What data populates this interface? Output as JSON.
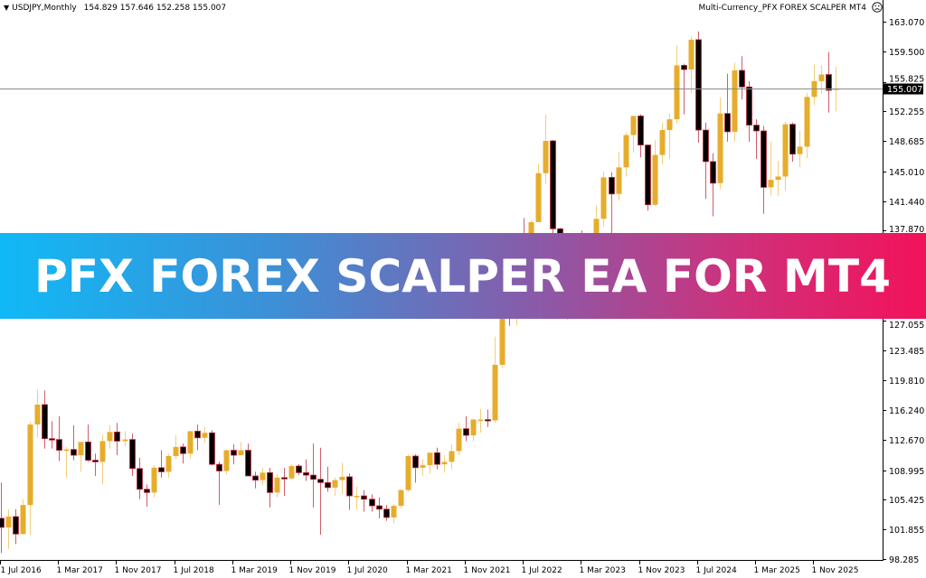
{
  "header": {
    "symbol": "USDJPY,Monthly",
    "ohlc": "154.829 157.646 152.258 155.007",
    "expert_name": "Multi-Currency_PFX FOREX SCALPER MT4",
    "expert_status_icon": "frown-face-icon"
  },
  "banner": {
    "title": "PFX FOREX SCALPER EA FOR MT4",
    "gradient": [
      "#10b9f6",
      "#f2125a"
    ]
  },
  "current_price_label": "155.007",
  "chart_data": {
    "type": "candlestick",
    "symbol": "USDJPY",
    "timeframe": "Monthly",
    "ylim": [
      98.285,
      163.07
    ],
    "grid": false,
    "colors": {
      "bull": "#e6ad2c",
      "bull_wick": "#f0c35a",
      "bear_body": "#000000",
      "bear_outline": "#c0283a",
      "price_line": "#8a8a8a"
    },
    "current_price": 155.007,
    "y_ticks": [
      "163.070",
      "159.500",
      "155.825",
      "152.255",
      "148.685",
      "145.010",
      "141.440",
      "137.870",
      "127.055",
      "123.485",
      "119.810",
      "116.240",
      "112.670",
      "108.995",
      "105.425",
      "101.855",
      "98.285"
    ],
    "x_ticks": [
      "1 Jul 2016",
      "1 Mar 2017",
      "1 Nov 2017",
      "1 Jul 2018",
      "1 Mar 2019",
      "1 Nov 2019",
      "1 Jul 2020",
      "1 Mar 2021",
      "1 Nov 2021",
      "1 Jul 2022",
      "1 Mar 2023",
      "1 Nov 2023",
      "1 Jul 2024",
      "1 Mar 2025",
      "1 Nov 2025"
    ],
    "ohlc_columns": [
      "month",
      "open",
      "high",
      "low",
      "close"
    ],
    "candles": [
      [
        "2016-07",
        103.2,
        107.5,
        99.0,
        102.1
      ],
      [
        "2016-08",
        102.1,
        104.3,
        99.5,
        103.4
      ],
      [
        "2016-09",
        103.4,
        104.3,
        100.1,
        101.3
      ],
      [
        "2016-10",
        101.3,
        105.5,
        101.2,
        104.8
      ],
      [
        "2016-11",
        104.8,
        114.8,
        101.2,
        114.5
      ],
      [
        "2016-12",
        114.5,
        118.7,
        112.9,
        116.9
      ],
      [
        "2017-01",
        116.9,
        118.6,
        111.6,
        112.8
      ],
      [
        "2017-02",
        112.8,
        114.9,
        111.6,
        112.7
      ],
      [
        "2017-03",
        112.7,
        115.5,
        110.1,
        111.4
      ],
      [
        "2017-04",
        111.4,
        111.8,
        108.1,
        111.5
      ],
      [
        "2017-05",
        111.5,
        114.4,
        110.2,
        110.8
      ],
      [
        "2017-06",
        110.8,
        112.4,
        108.8,
        112.4
      ],
      [
        "2017-07",
        112.4,
        114.5,
        110.0,
        110.2
      ],
      [
        "2017-08",
        110.2,
        111.0,
        108.3,
        110.0
      ],
      [
        "2017-09",
        110.0,
        113.3,
        107.3,
        112.5
      ],
      [
        "2017-10",
        112.5,
        114.4,
        111.6,
        113.6
      ],
      [
        "2017-11",
        113.6,
        114.7,
        110.8,
        112.5
      ],
      [
        "2017-12",
        112.5,
        113.7,
        111.9,
        112.7
      ],
      [
        "2018-01",
        112.7,
        113.4,
        108.3,
        109.2
      ],
      [
        "2018-02",
        109.2,
        110.5,
        105.5,
        106.7
      ],
      [
        "2018-03",
        106.7,
        107.3,
        104.6,
        106.3
      ],
      [
        "2018-04",
        106.3,
        109.6,
        105.7,
        109.3
      ],
      [
        "2018-05",
        109.3,
        111.4,
        108.1,
        108.8
      ],
      [
        "2018-06",
        108.8,
        111.0,
        108.1,
        110.7
      ],
      [
        "2018-07",
        110.7,
        113.2,
        110.3,
        111.8
      ],
      [
        "2018-08",
        111.8,
        112.2,
        109.8,
        111.0
      ],
      [
        "2018-09",
        111.0,
        113.7,
        110.4,
        113.7
      ],
      [
        "2018-10",
        113.7,
        114.5,
        111.4,
        112.9
      ],
      [
        "2018-11",
        112.9,
        114.2,
        112.3,
        113.5
      ],
      [
        "2018-12",
        113.5,
        113.8,
        109.6,
        109.7
      ],
      [
        "2019-01",
        109.7,
        110.0,
        104.8,
        108.9
      ],
      [
        "2019-02",
        108.9,
        111.5,
        108.5,
        111.4
      ],
      [
        "2019-03",
        111.4,
        112.1,
        109.7,
        110.8
      ],
      [
        "2019-04",
        110.8,
        112.4,
        110.8,
        111.4
      ],
      [
        "2019-05",
        111.4,
        112.2,
        108.3,
        108.3
      ],
      [
        "2019-06",
        108.3,
        108.8,
        106.8,
        107.8
      ],
      [
        "2019-07",
        107.8,
        109.3,
        107.2,
        108.7
      ],
      [
        "2019-08",
        108.7,
        109.3,
        104.5,
        106.3
      ],
      [
        "2019-09",
        106.3,
        108.5,
        105.7,
        108.1
      ],
      [
        "2019-10",
        108.1,
        109.3,
        105.9,
        108.0
      ],
      [
        "2019-11",
        108.0,
        109.7,
        107.9,
        109.5
      ],
      [
        "2019-12",
        109.5,
        109.7,
        108.4,
        108.7
      ],
      [
        "2020-01",
        108.7,
        110.3,
        107.7,
        108.4
      ],
      [
        "2020-02",
        108.4,
        112.2,
        104.5,
        107.9
      ],
      [
        "2020-03",
        107.9,
        111.7,
        101.2,
        107.5
      ],
      [
        "2020-04",
        107.5,
        109.4,
        106.4,
        106.9
      ],
      [
        "2020-05",
        106.9,
        108.1,
        105.9,
        107.8
      ],
      [
        "2020-06",
        107.8,
        109.9,
        106.1,
        108.2
      ],
      [
        "2020-07",
        108.2,
        108.6,
        104.2,
        105.9
      ],
      [
        "2020-08",
        105.9,
        107.0,
        104.2,
        105.9
      ],
      [
        "2020-09",
        105.9,
        106.6,
        104.0,
        105.5
      ],
      [
        "2020-10",
        105.5,
        106.1,
        104.0,
        104.7
      ],
      [
        "2020-11",
        104.7,
        105.7,
        103.2,
        104.3
      ],
      [
        "2020-12",
        104.3,
        104.8,
        102.9,
        103.3
      ],
      [
        "2021-01",
        103.3,
        104.9,
        102.6,
        104.7
      ],
      [
        "2021-02",
        104.7,
        106.7,
        104.4,
        106.6
      ],
      [
        "2021-03",
        106.6,
        110.9,
        106.4,
        110.7
      ],
      [
        "2021-04",
        110.7,
        110.9,
        107.5,
        109.3
      ],
      [
        "2021-05",
        109.3,
        110.3,
        108.3,
        109.6
      ],
      [
        "2021-06",
        109.6,
        111.1,
        108.6,
        111.1
      ],
      [
        "2021-07",
        111.1,
        111.7,
        109.1,
        109.7
      ],
      [
        "2021-08",
        109.7,
        110.8,
        108.7,
        110.0
      ],
      [
        "2021-09",
        110.0,
        112.1,
        109.1,
        111.3
      ],
      [
        "2021-10",
        111.3,
        114.7,
        110.8,
        114.0
      ],
      [
        "2021-11",
        114.0,
        115.5,
        112.5,
        113.2
      ],
      [
        "2021-12",
        113.2,
        115.2,
        112.5,
        115.1
      ],
      [
        "2022-01",
        115.1,
        116.4,
        113.5,
        115.1
      ],
      [
        "2022-02",
        115.1,
        116.3,
        114.2,
        115.0
      ],
      [
        "2022-03",
        115.0,
        125.1,
        114.7,
        121.7
      ],
      [
        "2022-04",
        121.7,
        131.3,
        121.3,
        129.8
      ],
      [
        "2022-05",
        129.8,
        131.3,
        126.4,
        128.7
      ],
      [
        "2022-06",
        128.7,
        137.0,
        126.4,
        135.7
      ],
      [
        "2022-07",
        135.7,
        139.4,
        132.5,
        133.2
      ],
      [
        "2022-08",
        133.2,
        139.1,
        130.4,
        138.9
      ],
      [
        "2022-09",
        138.9,
        145.9,
        138.9,
        144.8
      ],
      [
        "2022-10",
        144.8,
        151.9,
        143.5,
        148.7
      ],
      [
        "2022-11",
        148.7,
        148.8,
        137.5,
        138.1
      ],
      [
        "2022-12",
        138.1,
        138.2,
        130.6,
        131.1
      ],
      [
        "2023-01",
        131.1,
        134.8,
        127.2,
        130.1
      ],
      [
        "2023-02",
        130.1,
        137.1,
        128.1,
        136.2
      ],
      [
        "2023-03",
        136.2,
        137.9,
        129.6,
        132.8
      ],
      [
        "2023-04",
        132.8,
        136.6,
        130.6,
        136.3
      ],
      [
        "2023-05",
        136.3,
        140.9,
        133.5,
        139.3
      ],
      [
        "2023-06",
        139.3,
        145.0,
        138.4,
        144.3
      ],
      [
        "2023-07",
        144.3,
        144.9,
        137.2,
        142.3
      ],
      [
        "2023-08",
        142.3,
        147.4,
        141.5,
        145.5
      ],
      [
        "2023-09",
        145.5,
        149.7,
        144.4,
        149.4
      ],
      [
        "2023-10",
        149.4,
        151.7,
        147.3,
        151.7
      ],
      [
        "2023-11",
        151.7,
        151.9,
        146.7,
        148.2
      ],
      [
        "2023-12",
        148.2,
        148.2,
        140.3,
        141.0
      ],
      [
        "2024-01",
        141.0,
        148.8,
        140.8,
        147.0
      ],
      [
        "2024-02",
        147.0,
        150.9,
        145.9,
        150.0
      ],
      [
        "2024-03",
        150.0,
        152.0,
        146.5,
        151.3
      ],
      [
        "2024-04",
        151.3,
        160.2,
        150.8,
        157.8
      ],
      [
        "2024-05",
        157.8,
        158.0,
        151.9,
        157.3
      ],
      [
        "2024-06",
        157.3,
        161.3,
        154.5,
        160.9
      ],
      [
        "2024-07",
        160.9,
        161.9,
        148.5,
        150.0
      ],
      [
        "2024-08",
        150.0,
        150.9,
        141.7,
        146.2
      ],
      [
        "2024-09",
        146.2,
        147.2,
        139.6,
        143.6
      ],
      [
        "2024-10",
        143.6,
        153.9,
        142.9,
        152.0
      ],
      [
        "2024-11",
        152.0,
        156.8,
        148.6,
        149.8
      ],
      [
        "2024-12",
        149.8,
        158.1,
        148.6,
        157.2
      ],
      [
        "2025-01",
        157.2,
        158.9,
        153.7,
        155.2
      ],
      [
        "2025-02",
        155.2,
        155.9,
        148.6,
        150.6
      ],
      [
        "2025-03",
        150.6,
        151.3,
        146.5,
        149.9
      ],
      [
        "2025-04",
        149.9,
        150.5,
        139.9,
        143.1
      ],
      [
        "2025-05",
        143.1,
        148.6,
        142.1,
        144.0
      ],
      [
        "2025-06",
        144.0,
        146.3,
        142.1,
        144.4
      ],
      [
        "2025-07",
        144.4,
        151.0,
        142.7,
        150.7
      ],
      [
        "2025-08",
        150.7,
        150.9,
        146.2,
        147.1
      ],
      [
        "2025-09",
        147.1,
        149.9,
        145.5,
        148.0
      ],
      [
        "2025-10",
        148.0,
        154.5,
        146.6,
        154.0
      ],
      [
        "2025-11",
        154.0,
        157.9,
        153.0,
        155.9
      ],
      [
        "2025-12",
        155.9,
        157.8,
        154.4,
        156.7
      ],
      [
        "2026-01",
        156.7,
        159.4,
        152.1,
        154.8
      ],
      [
        "2026-02",
        154.829,
        157.646,
        152.258,
        155.007
      ]
    ]
  }
}
